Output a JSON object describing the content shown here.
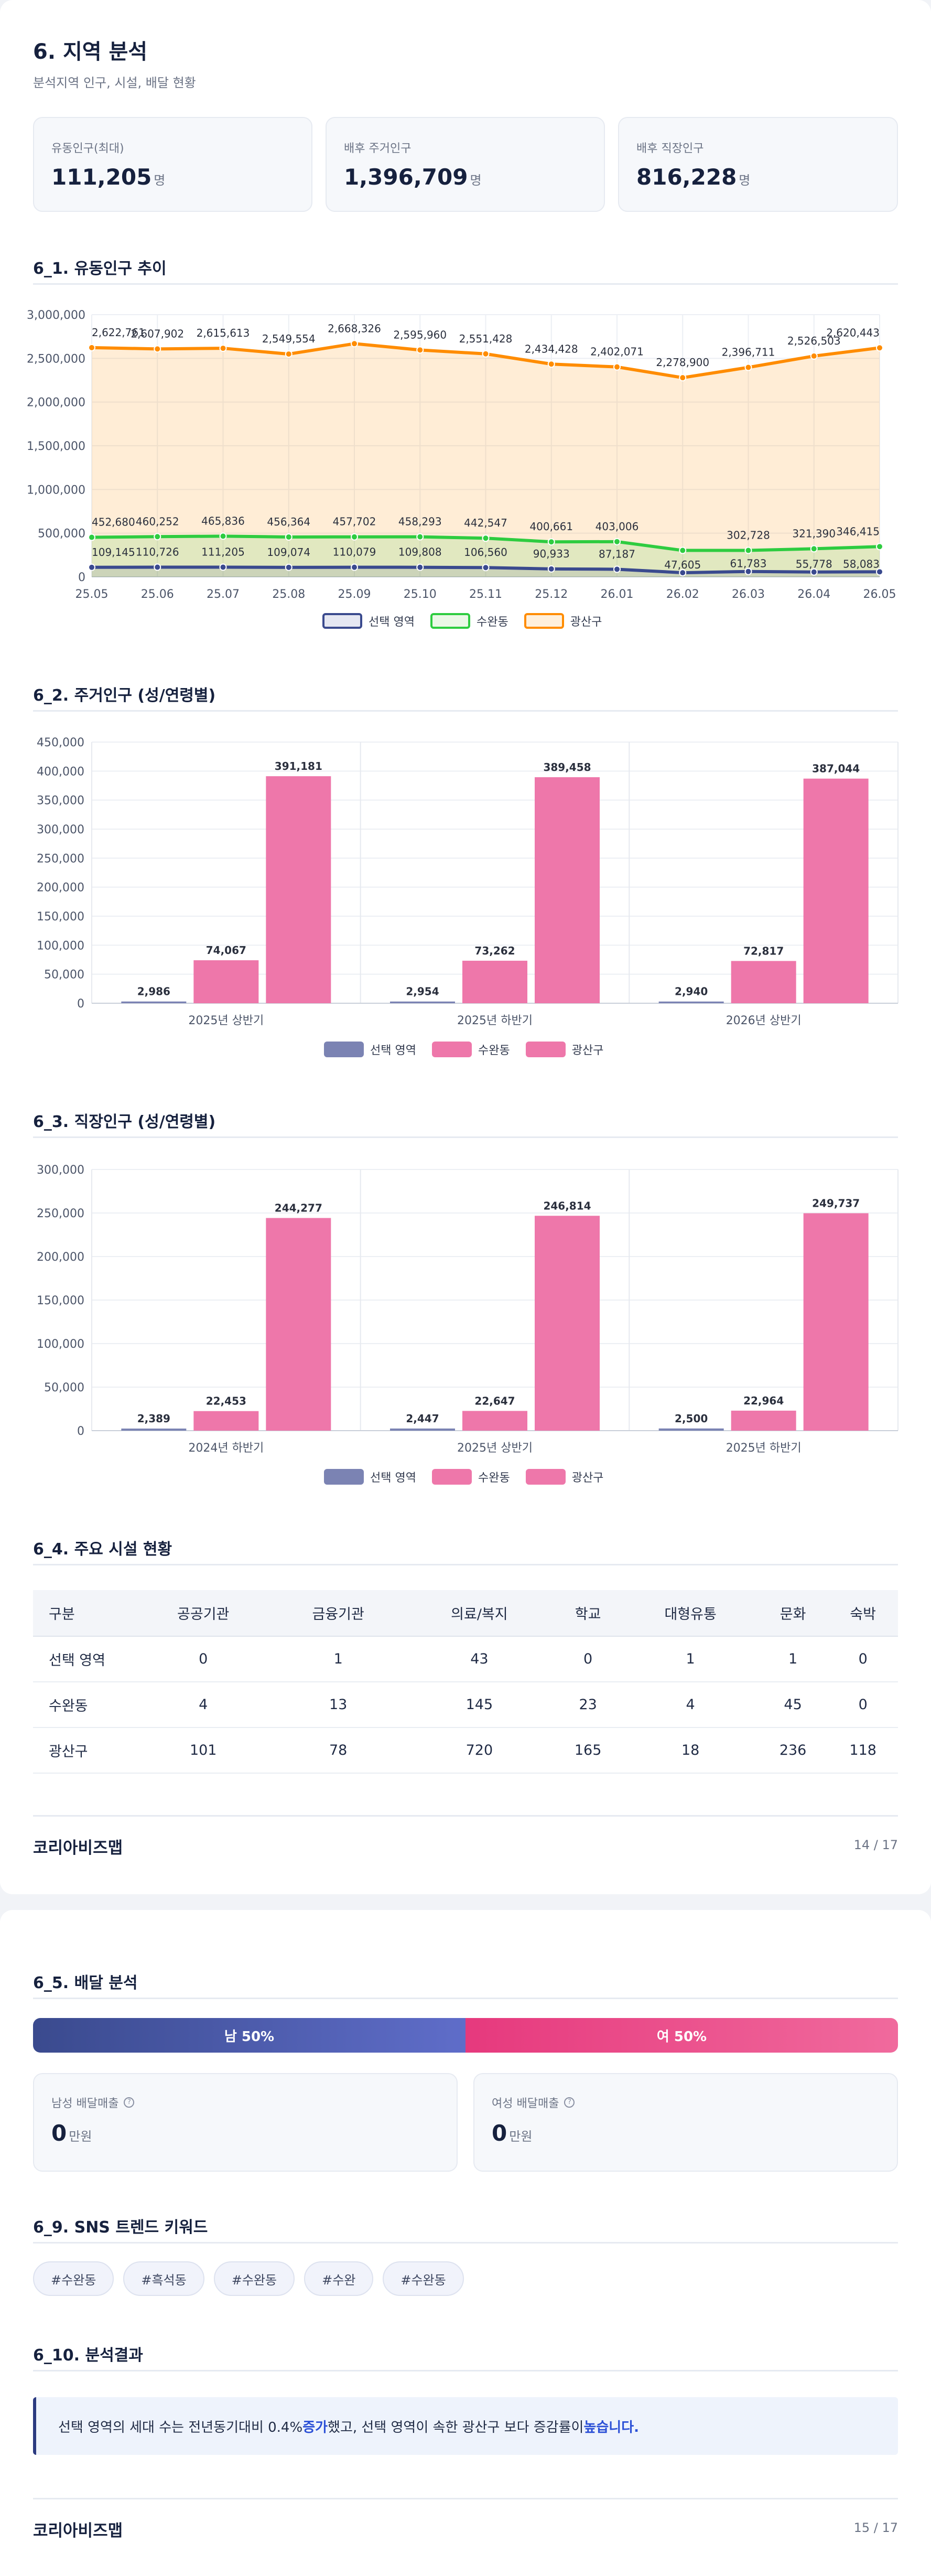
{
  "page1": {
    "title": "6. 지역 분석",
    "subtitle": "분석지역 인구, 시설, 배달 현황",
    "cards": [
      {
        "label": "유동인구(최대)",
        "value": "111,205",
        "unit": "명"
      },
      {
        "label": "배후 주거인구",
        "value": "1,396,709",
        "unit": "명"
      },
      {
        "label": "배후 직장인구",
        "value": "816,228",
        "unit": "명"
      }
    ],
    "sections": {
      "s1": "6_1. 유동인구 추이",
      "s2": "6_2. 주거인구 (성/연령별)",
      "s3": "6_3. 직장인구 (성/연령별)",
      "s4": "6_4. 주요 시설 현황"
    },
    "footer": {
      "brand": "코리아비즈맵",
      "page": "14 / 17"
    }
  },
  "legend": {
    "line": [
      "선택 영역",
      "수완동",
      "광산구"
    ],
    "bar": [
      "선택 영역",
      "수완동",
      "광산구"
    ]
  },
  "chart_data": [
    {
      "type": "line",
      "x": [
        "25.05",
        "25.06",
        "25.07",
        "25.08",
        "25.09",
        "25.10",
        "25.11",
        "25.12",
        "26.01",
        "26.02",
        "26.03",
        "26.04",
        "26.05"
      ],
      "ylim": [
        0,
        3000000
      ],
      "yticks": [
        "0",
        "500,000",
        "1,000,000",
        "1,500,000",
        "2,000,000",
        "2,500,000",
        "3,000,000"
      ],
      "series": [
        {
          "name": "선택 영역",
          "color": "#3a4a8e",
          "values": [
            109145,
            110726,
            111205,
            109074,
            110079,
            109808,
            106560,
            90933,
            87187,
            47605,
            61783,
            55778,
            58083
          ],
          "labels": [
            "109,145",
            "110,726",
            "111,205",
            "109,074",
            "110,079",
            "109,808",
            "106,560",
            "90,933",
            "87,187",
            "47,605",
            "61,783",
            "55,778",
            "58,083"
          ]
        },
        {
          "name": "수완동",
          "color": "#2ecc40",
          "values": [
            452680,
            460252,
            465836,
            456364,
            457702,
            458293,
            442547,
            400661,
            403006,
            302728,
            302728,
            321390,
            346415
          ],
          "labels": [
            "452,680",
            "460,252",
            "465,836",
            "456,364",
            "457,702",
            "458,293",
            "442,547",
            "400,661",
            "403,006",
            "",
            "302,728",
            "321,390",
            "346,415"
          ]
        },
        {
          "name": "광산구",
          "color": "#ff8c00",
          "values": [
            2622761,
            2607902,
            2615613,
            2549554,
            2668326,
            2595960,
            2551428,
            2434428,
            2402071,
            2278900,
            2396711,
            2526503,
            2620443
          ],
          "labels": [
            "2,622,761",
            "2,607,902",
            "2,615,613",
            "2,549,554",
            "2,668,326",
            "2,595,960",
            "2,551,428",
            "2,434,428",
            "2,402,071",
            "2,278,900",
            "2,396,711",
            "2,526,503",
            "2,620,443"
          ]
        }
      ]
    },
    {
      "type": "bar",
      "categories": [
        "2025년 상반기",
        "2025년 하반기",
        "2026년 상반기"
      ],
      "ylim": [
        0,
        450000
      ],
      "yticks": [
        "0",
        "50,000",
        "100,000",
        "150,000",
        "200,000",
        "250,000",
        "300,000",
        "350,000",
        "400,000",
        "450,000"
      ],
      "series": [
        {
          "name": "선택 영역",
          "color": "#7b83b3",
          "values": [
            2986,
            2954,
            2940
          ],
          "labels": [
            "2,986",
            "2,954",
            "2,940"
          ]
        },
        {
          "name": "수완동",
          "color": "#ee77aa",
          "values": [
            74067,
            73262,
            72817
          ],
          "labels": [
            "74,067",
            "73,262",
            "72,817"
          ]
        },
        {
          "name": "광산구",
          "color": "#ee77aa",
          "values": [
            391181,
            389458,
            387044
          ],
          "labels": [
            "391,181",
            "389,458",
            "387,044"
          ]
        }
      ]
    },
    {
      "type": "bar",
      "categories": [
        "2024년 하반기",
        "2025년 상반기",
        "2025년 하반기"
      ],
      "ylim": [
        0,
        300000
      ],
      "yticks": [
        "0",
        "50,000",
        "100,000",
        "150,000",
        "200,000",
        "250,000",
        "300,000"
      ],
      "series": [
        {
          "name": "선택 영역",
          "color": "#7b83b3",
          "values": [
            2389,
            2447,
            2500
          ],
          "labels": [
            "2,389",
            "2,447",
            "2,500"
          ]
        },
        {
          "name": "수완동",
          "color": "#ee77aa",
          "values": [
            22453,
            22647,
            22964
          ],
          "labels": [
            "22,453",
            "22,647",
            "22,964"
          ]
        },
        {
          "name": "광산구",
          "color": "#ee77aa",
          "values": [
            244277,
            246814,
            249737
          ],
          "labels": [
            "244,277",
            "246,814",
            "249,737"
          ]
        }
      ]
    }
  ],
  "facilities": {
    "headers": [
      "구분",
      "공공기관",
      "금융기관",
      "의료/복지",
      "학교",
      "대형유통",
      "문화",
      "숙박"
    ],
    "rows": [
      [
        "선택 영역",
        "0",
        "1",
        "43",
        "0",
        "1",
        "1",
        "0"
      ],
      [
        "수완동",
        "4",
        "13",
        "145",
        "23",
        "4",
        "45",
        "0"
      ],
      [
        "광산구",
        "101",
        "78",
        "720",
        "165",
        "18",
        "236",
        "118"
      ]
    ]
  },
  "page2": {
    "s5": "6_5. 배달 분석",
    "male_pct": 50,
    "male_label": "남 50%",
    "female_label": "여 50%",
    "male_sales": {
      "label": "남성 배달매출",
      "value": "0",
      "unit": "만원"
    },
    "female_sales": {
      "label": "여성 배달매출",
      "value": "0",
      "unit": "만원"
    },
    "s9": "6_9. SNS 트렌드 키워드",
    "keywords": [
      "#수완동",
      "#흑석동",
      "#수완동",
      "#수완",
      "#수완동"
    ],
    "s10": "6_10. 분석결과",
    "result": {
      "t1": "선택 영역의 세대 수는 전년동기대비 0.4% ",
      "b1": "증가",
      "t2": "했고, 선택 영역이 속한 광산구 보다 증감률이 ",
      "b2": "높습니다."
    },
    "footer": {
      "brand": "코리아비즈맵",
      "page": "15 / 17"
    }
  }
}
